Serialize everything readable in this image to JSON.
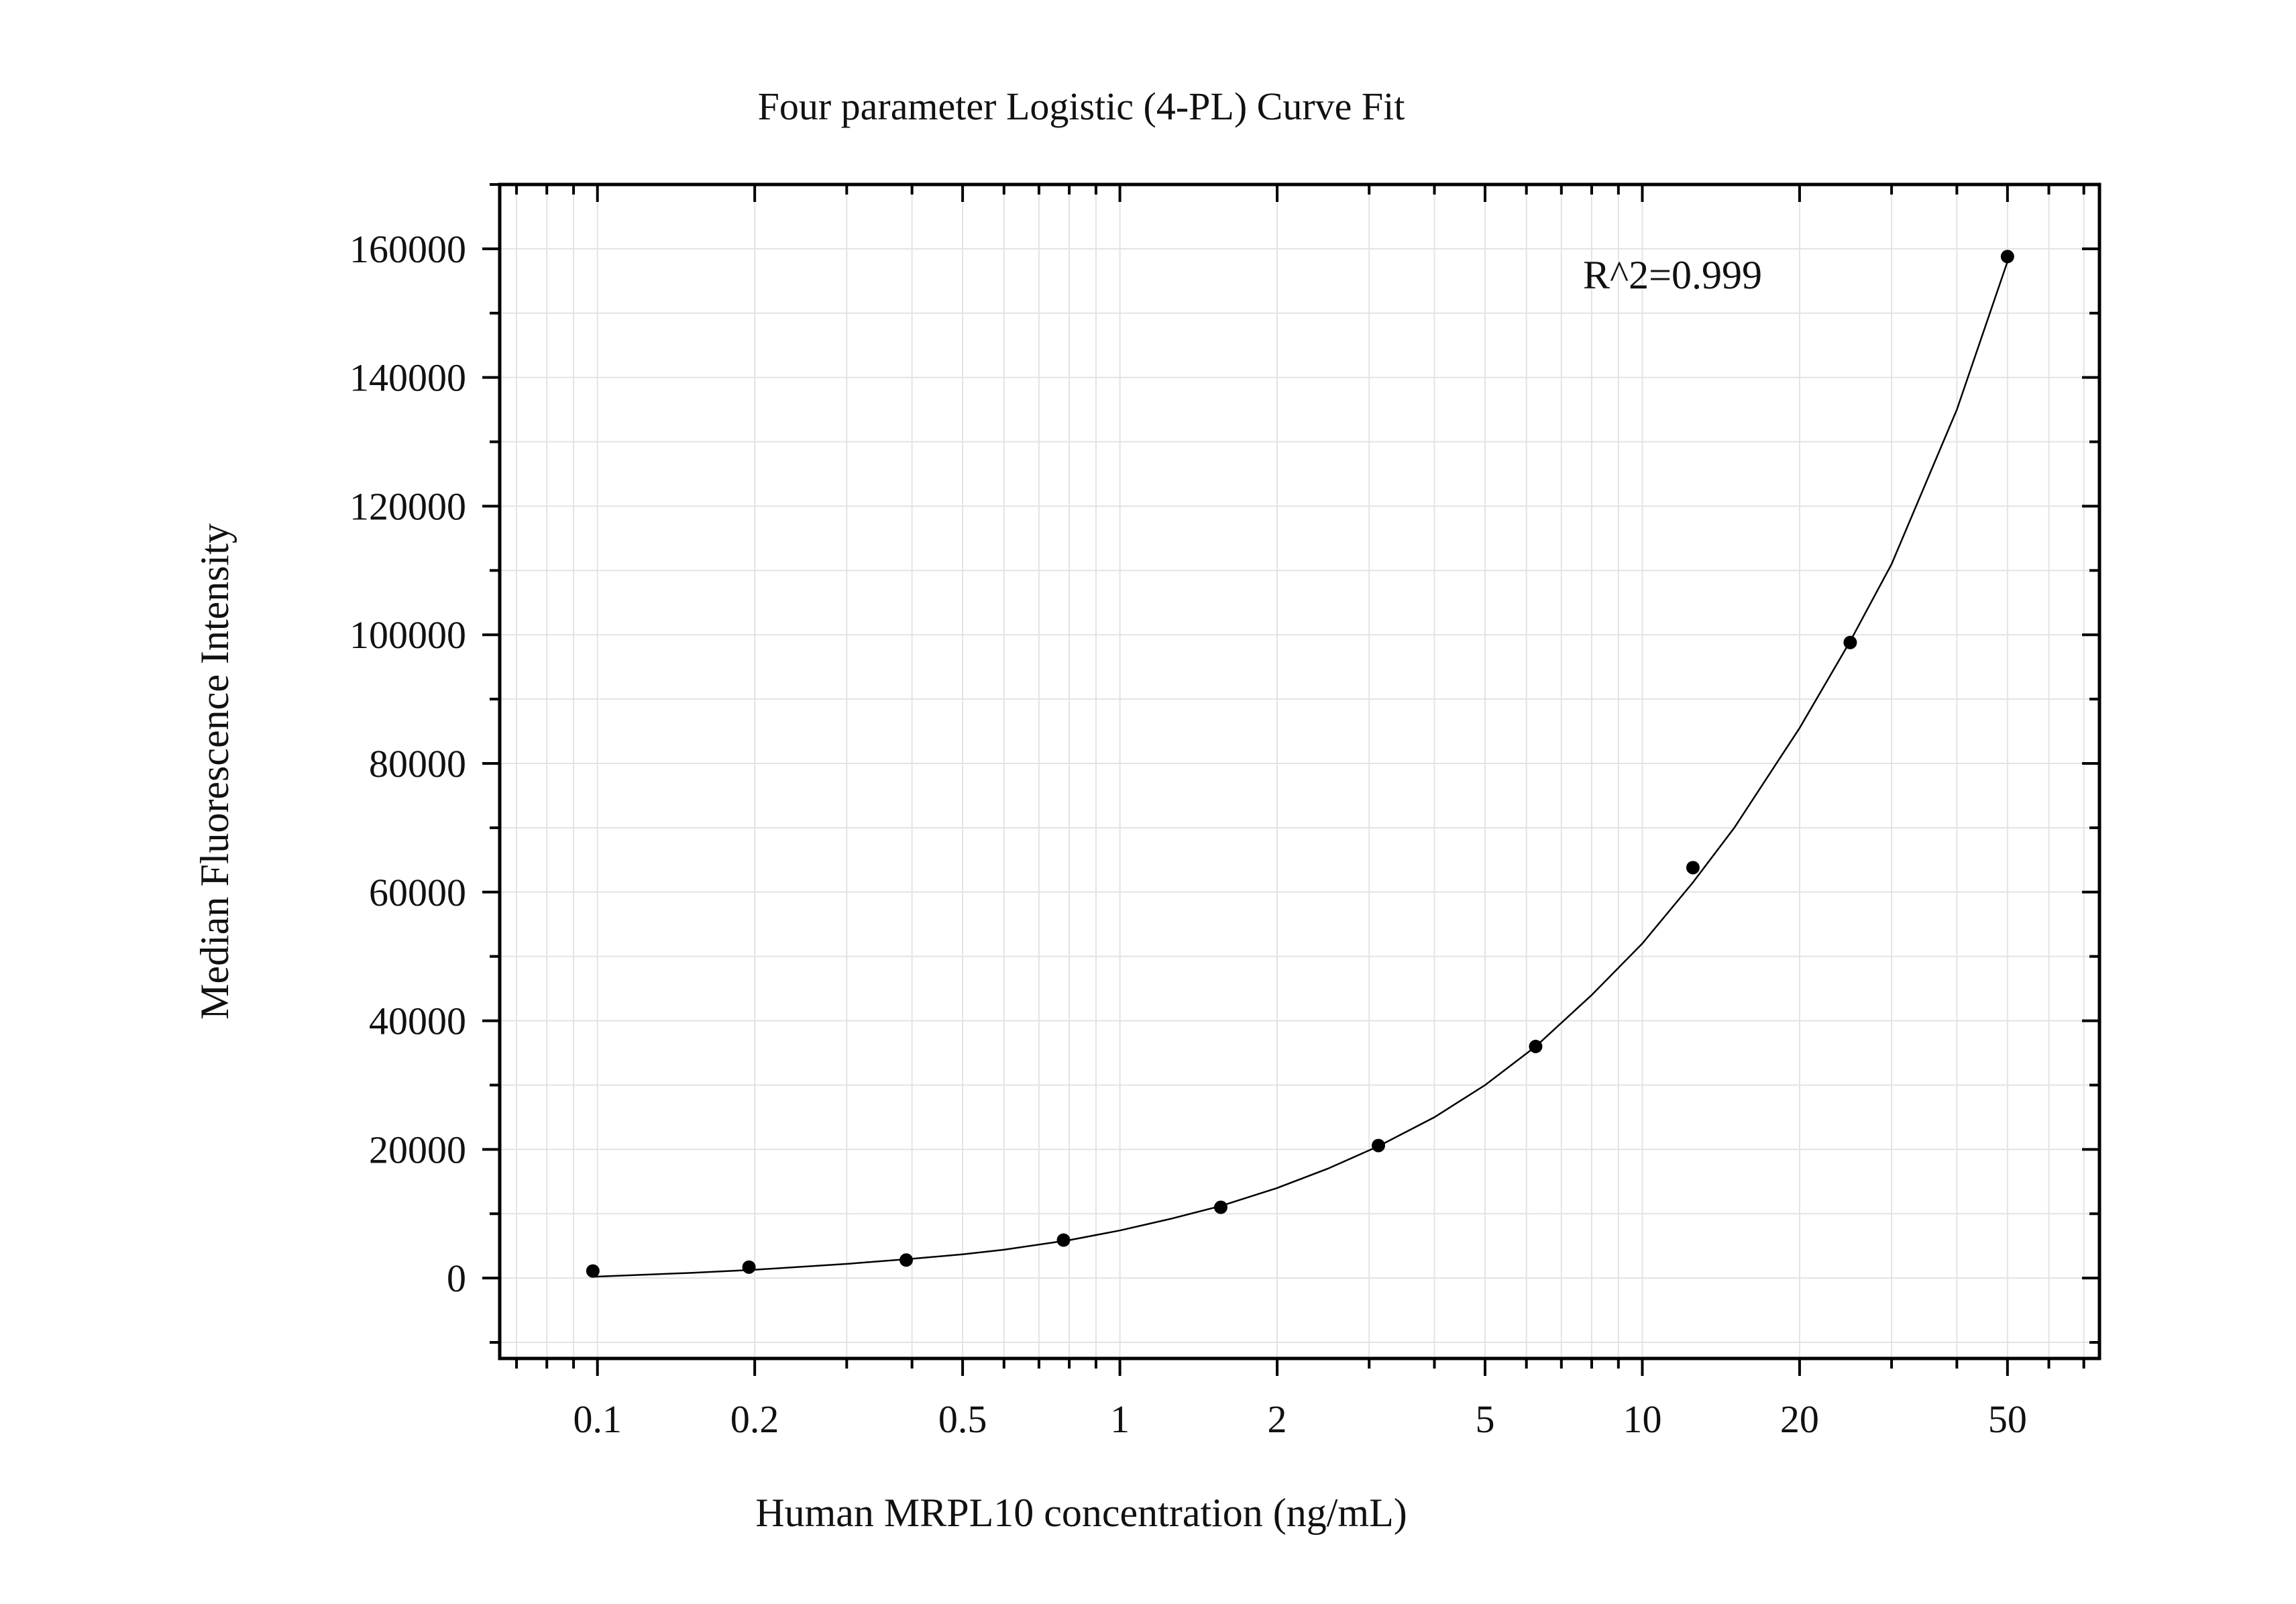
{
  "chart_data": {
    "type": "scatter",
    "title": "Four parameter Logistic (4-PL) Curve Fit",
    "xlabel": "Human MRPL10 concentration (ng/mL)",
    "ylabel": "Median Fluorescence Intensity",
    "x_scale": "log",
    "xlim": [
      0.065,
      75
    ],
    "ylim": [
      -12500,
      170000
    ],
    "x_tick_values": [
      0.1,
      0.2,
      0.5,
      1,
      2,
      5,
      10,
      20,
      50
    ],
    "x_tick_labels": [
      "0.1",
      "0.2",
      "0.5",
      "1",
      "2",
      "5",
      "10",
      "20",
      "50"
    ],
    "y_tick_values": [
      0,
      20000,
      40000,
      60000,
      80000,
      100000,
      120000,
      140000,
      160000
    ],
    "y_tick_labels": [
      "0",
      "20000",
      "40000",
      "60000",
      "80000",
      "100000",
      "120000",
      "140000",
      "160000"
    ],
    "grid": true,
    "annotation": "R^2=0.999",
    "series": [
      {
        "points": [
          {
            "x": 0.098,
            "y": 1100
          },
          {
            "x": 0.195,
            "y": 1700
          },
          {
            "x": 0.39,
            "y": 2800
          },
          {
            "x": 0.78,
            "y": 5900
          },
          {
            "x": 1.56,
            "y": 11000
          },
          {
            "x": 3.125,
            "y": 20600
          },
          {
            "x": 6.25,
            "y": 36000
          },
          {
            "x": 12.5,
            "y": 63800
          },
          {
            "x": 25,
            "y": 98800
          },
          {
            "x": 50,
            "y": 158800
          }
        ]
      }
    ],
    "fit_curve": {
      "x": [
        0.098,
        0.15,
        0.2,
        0.3,
        0.4,
        0.5,
        0.6,
        0.8,
        1,
        1.25,
        1.56,
        2,
        2.5,
        3.125,
        4,
        5,
        6.25,
        8,
        10,
        12.5,
        15,
        20,
        25,
        30,
        40,
        50
      ],
      "y": [
        200,
        800,
        1300,
        2200,
        3000,
        3700,
        4400,
        5900,
        7400,
        9200,
        11200,
        14000,
        17000,
        20500,
        25000,
        30000,
        36000,
        44000,
        52000,
        61500,
        70000,
        85500,
        99000,
        111000,
        135000,
        158000
      ]
    },
    "colors": {
      "marker": "#000000",
      "curve": "#000000",
      "axis": "#000000",
      "grid": "#e3e3e3"
    }
  }
}
